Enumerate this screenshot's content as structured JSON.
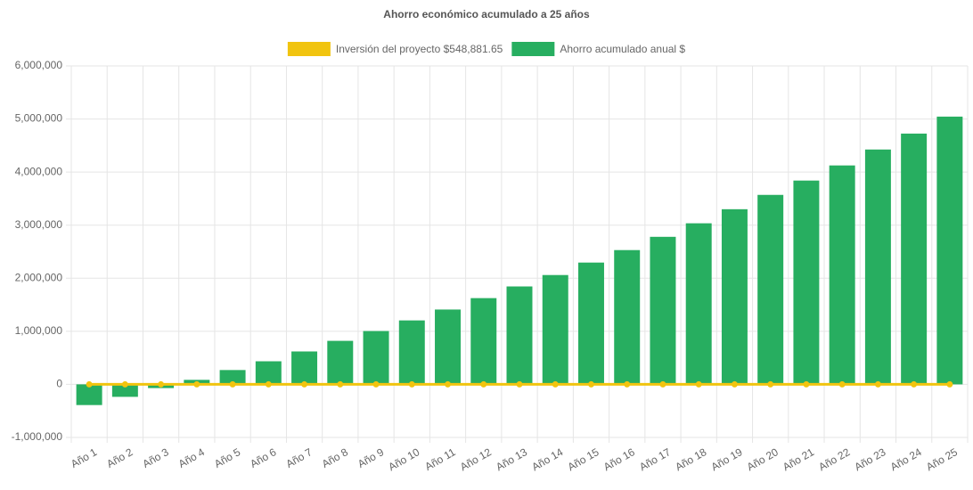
{
  "chart_data": {
    "type": "bar",
    "title": "Ahorro económico acumulado a 25 años",
    "categories": [
      "Año 1",
      "Año 2",
      "Año 3",
      "Año 4",
      "Año 5",
      "Año 6",
      "Año 7",
      "Año 8",
      "Año 9",
      "Año 10",
      "Año 11",
      "Año 12",
      "Año 13",
      "Año 14",
      "Año 15",
      "Año 16",
      "Año 17",
      "Año 18",
      "Año 19",
      "Año 20",
      "Año 21",
      "Año 22",
      "Año 23",
      "Año 24",
      "Año 25"
    ],
    "series": [
      {
        "name": "Inversión del proyecto $548,881.65",
        "type": "line",
        "color": "#f1c40f",
        "values": [
          0,
          0,
          0,
          0,
          0,
          0,
          0,
          0,
          0,
          0,
          0,
          0,
          0,
          0,
          0,
          0,
          0,
          0,
          0,
          0,
          0,
          0,
          0,
          0,
          0
        ]
      },
      {
        "name": "Ahorro acumulado anual $",
        "type": "bar",
        "color": "#27ae60",
        "values": [
          -390000,
          -235000,
          -70000,
          85000,
          270000,
          435000,
          620000,
          820000,
          1005000,
          1205000,
          1410000,
          1625000,
          1845000,
          2060000,
          2295000,
          2530000,
          2780000,
          3035000,
          3300000,
          3570000,
          3840000,
          4125000,
          4425000,
          4725000,
          5045000
        ]
      }
    ],
    "ylim": [
      -1000000,
      6000000
    ],
    "yticks": [
      {
        "value": -1000000,
        "label": "-1,000,000"
      },
      {
        "value": 0,
        "label": "0"
      },
      {
        "value": 1000000,
        "label": "1,000,000"
      },
      {
        "value": 2000000,
        "label": "2,000,000"
      },
      {
        "value": 3000000,
        "label": "3,000,000"
      },
      {
        "value": 4000000,
        "label": "4,000,000"
      },
      {
        "value": 5000000,
        "label": "5,000,000"
      },
      {
        "value": 6000000,
        "label": "6,000,000"
      }
    ],
    "grid": true
  }
}
